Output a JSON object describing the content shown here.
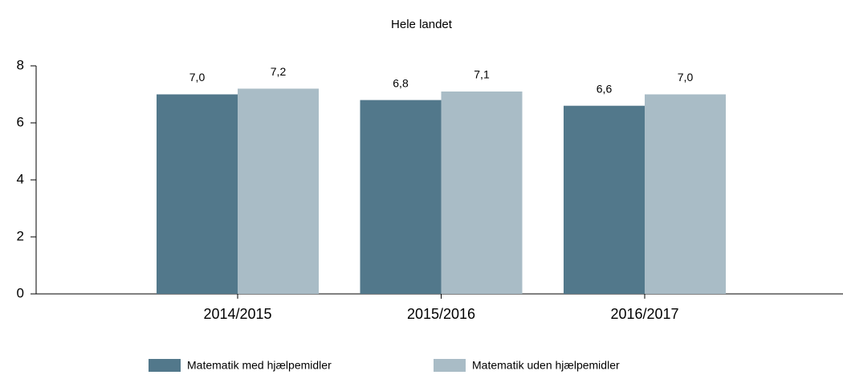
{
  "chart_data": {
    "type": "bar",
    "title": "Hele landet",
    "categories": [
      "2014/2015",
      "2015/2016",
      "2016/2017"
    ],
    "series": [
      {
        "name": "Matematik med hjælpemidler",
        "color": "#52788b",
        "values": [
          7.0,
          6.8,
          6.6
        ],
        "value_labels": [
          "7,0",
          "6,8",
          "6,6"
        ]
      },
      {
        "name": "Matematik uden hjælpemidler",
        "color": "#a9bcc6",
        "values": [
          7.2,
          7.1,
          7.0
        ],
        "value_labels": [
          "7,2",
          "7,1",
          "7,0"
        ]
      }
    ],
    "ylim": [
      0,
      8
    ],
    "yticks": [
      0,
      2,
      4,
      6,
      8
    ],
    "grid": false,
    "legend": "bottom"
  }
}
